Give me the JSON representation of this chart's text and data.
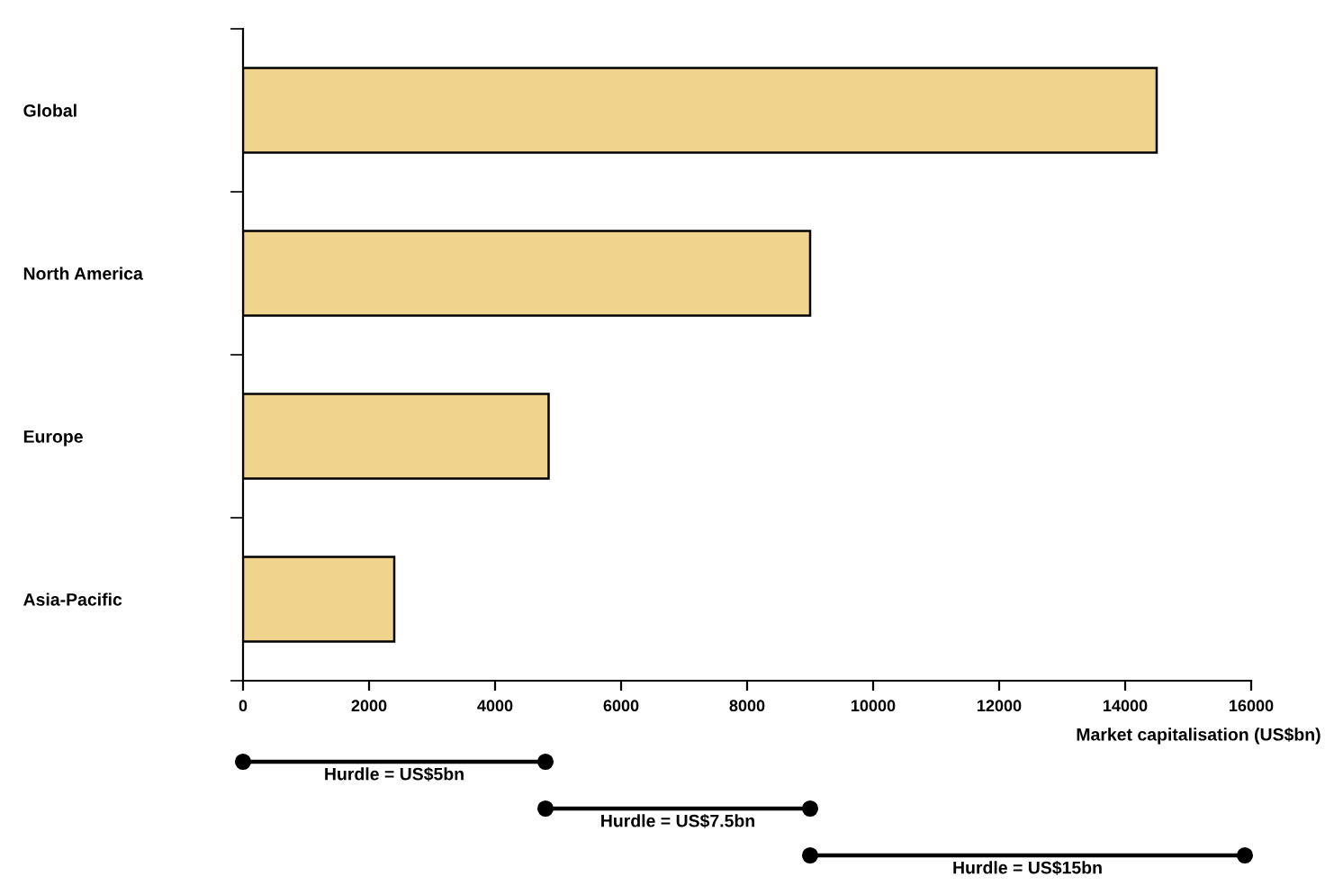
{
  "chart_data": [
    {
      "type": "bar",
      "orientation": "horizontal",
      "xlabel": "Market capitalisation (US$bn)",
      "categories": [
        "Global",
        "North America",
        "Europe",
        "Asia-Pacific"
      ],
      "values": [
        14500,
        9000,
        4850,
        2400
      ],
      "color": "#f0d48e",
      "xlim": [
        0,
        16000
      ],
      "xticks": [
        0,
        2000,
        4000,
        6000,
        8000,
        10000,
        12000,
        14000,
        16000
      ],
      "grid": false
    },
    {
      "type": "bar",
      "orientation": "horizontal",
      "categories": [
        null,
        null,
        null
      ],
      "base": [
        0,
        4800,
        9000
      ],
      "values": [
        4800,
        4200,
        6900
      ],
      "color": "#000000",
      "value_labels": [
        "Hurdle = US$5bn",
        "Hurdle = US$7.5bn",
        "Hurdle = US$15bn"
      ],
      "xlim": [
        0,
        16000
      ],
      "tick_labels": false
    }
  ]
}
